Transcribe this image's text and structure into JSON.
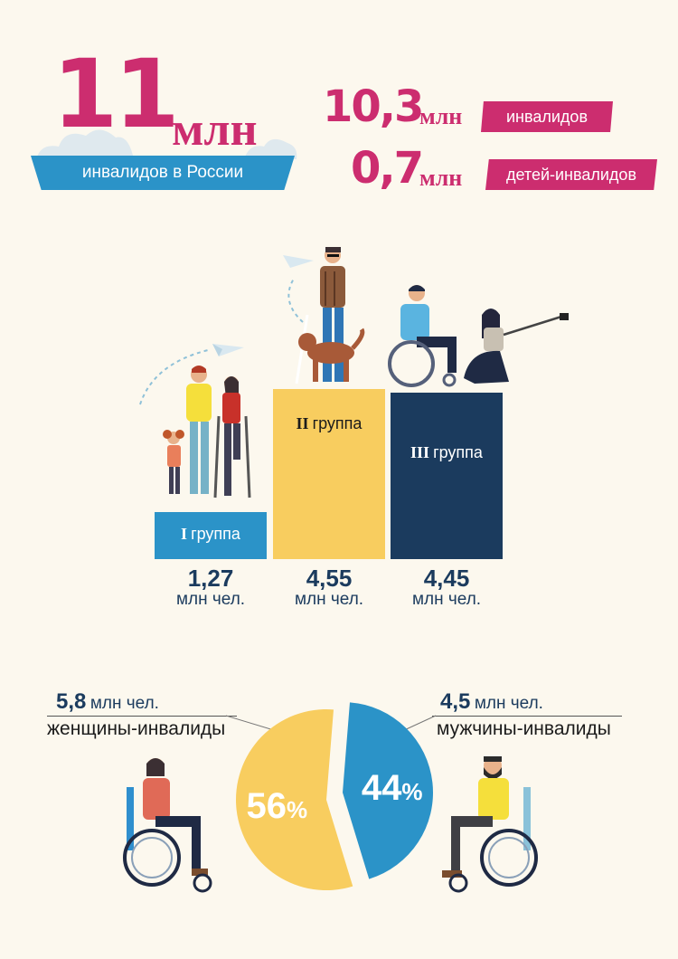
{
  "header": {
    "total_number": "11",
    "total_unit": "млн",
    "total_caption": "инвалидов в России",
    "adults_number": "10,3",
    "adults_unit": "млн",
    "adults_label": "инвалидов",
    "children_number": "0,7",
    "children_unit": "млн",
    "children_label": "детей-инвалидов"
  },
  "colors": {
    "brand_pink": "#cc2d6f",
    "blue": "#2b93c8",
    "yellow": "#f8cd5f",
    "navy": "#1b3b5e",
    "background": "#fcf8ee"
  },
  "chart_data": [
    {
      "type": "bar",
      "categories": [
        "I группа",
        "II группа",
        "III группа"
      ],
      "values": [
        1.27,
        4.55,
        4.45
      ],
      "value_labels": [
        "1,27",
        "4,55",
        "4,45"
      ],
      "unit_label": "млн чел.",
      "colors": [
        "#2b93c8",
        "#f8cd5f",
        "#1b3b5e"
      ],
      "group_numerals": [
        "I",
        "II",
        "III"
      ],
      "group_word": "группа"
    },
    {
      "type": "pie",
      "slices": [
        {
          "label": "женщины-инвалиды",
          "value": 56,
          "amount": "5,8",
          "unit": "млн чел.",
          "pct_label": "56",
          "color": "#f8cd5f"
        },
        {
          "label": "мужчины-инвалиды",
          "value": 44,
          "amount": "4,5",
          "unit": "млн чел.",
          "pct_label": "44",
          "color": "#2b93c8"
        }
      ],
      "pct_sign": "%"
    }
  ],
  "icons": [
    "cloud-icon",
    "paper-plane-icon",
    "family-illustration",
    "man-with-guide-dog-illustration",
    "wheelchair-couple-illustration",
    "woman-in-wheelchair-illustration",
    "man-in-wheelchair-illustration"
  ]
}
